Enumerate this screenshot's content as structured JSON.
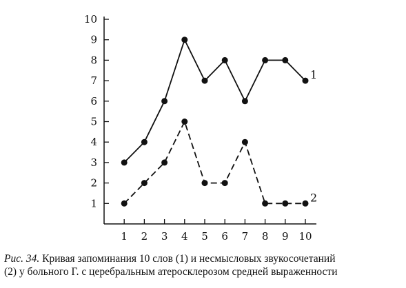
{
  "chart_data": {
    "type": "line",
    "x": [
      1,
      2,
      3,
      4,
      5,
      6,
      7,
      8,
      9,
      10
    ],
    "series": [
      {
        "name": "1",
        "values": [
          3,
          4,
          6,
          9,
          7,
          8,
          6,
          8,
          8,
          7
        ],
        "style": "solid"
      },
      {
        "name": "2",
        "values": [
          1,
          2,
          3,
          5,
          2,
          2,
          4,
          1,
          1,
          1
        ],
        "style": "dashed"
      }
    ],
    "xticks": [
      1,
      2,
      3,
      4,
      5,
      6,
      7,
      8,
      9,
      10
    ],
    "yticks": [
      1,
      2,
      3,
      4,
      5,
      6,
      7,
      8,
      9,
      10
    ],
    "xlim": [
      0,
      10.5
    ],
    "ylim": [
      0,
      10
    ],
    "grid": false,
    "color": "#111111"
  },
  "caption": {
    "figure": "Рис. 34.",
    "line1": " Кривая запоминания 10 слов (1) и несмысловых звукосочетаний",
    "line2": "(2) у больного Г. с церебральным атеросклерозом средней выраженности"
  }
}
